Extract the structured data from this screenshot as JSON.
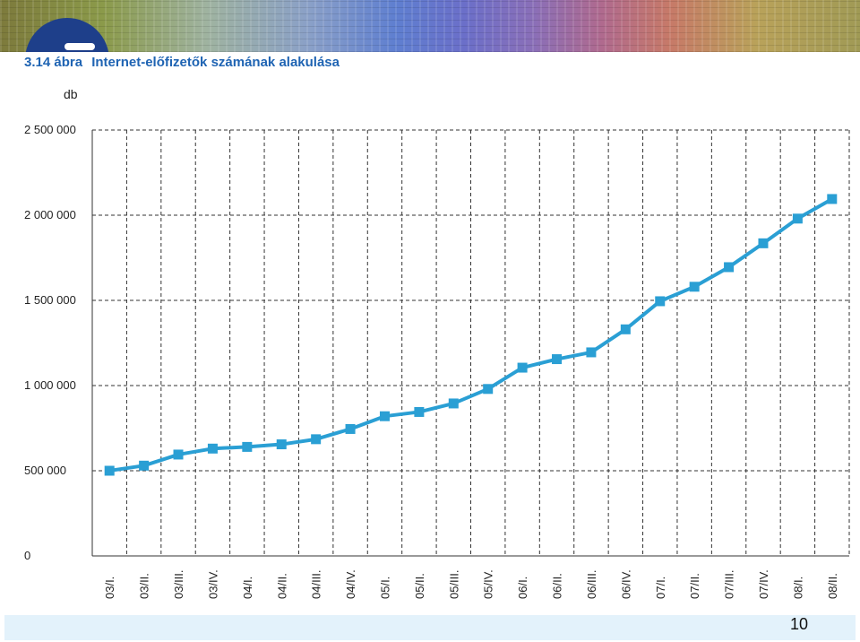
{
  "header": {
    "figure_label": "3.14 ábra",
    "title": "Internet-előfizetők számának alakulása"
  },
  "colors": {
    "series": "#2a9fd4",
    "title": "#1f64b3",
    "footer": "#e3f2fb"
  },
  "icons": {
    "banner_logo": "institution-logo"
  },
  "footer": {
    "page_number": "10"
  },
  "chart_data": {
    "type": "line",
    "title": "Internet-előfizetők számának alakulása",
    "ylabel": "db",
    "xlabel": "",
    "ylim": [
      0,
      2500000
    ],
    "yticks": [
      0,
      500000,
      1000000,
      1500000,
      2000000,
      2500000
    ],
    "ytick_labels": [
      "0",
      "500 000",
      "1 000 000",
      "1 500 000",
      "2 000 000",
      "2 500 000"
    ],
    "grid": true,
    "categories": [
      "03/I.",
      "03/II.",
      "03/III.",
      "03/IV.",
      "04/I.",
      "04/II.",
      "04/III.",
      "04/IV.",
      "05/I.",
      "05/II.",
      "05/III.",
      "05/IV.",
      "06/I.",
      "06/II.",
      "06/III.",
      "06/IV.",
      "07/I.",
      "07/II.",
      "07/III.",
      "07/IV.",
      "08/I.",
      "08/II."
    ],
    "series": [
      {
        "values": [
          500000,
          530000,
          595000,
          630000,
          640000,
          655000,
          685000,
          745000,
          820000,
          845000,
          895000,
          980000,
          1105000,
          1155000,
          1195000,
          1330000,
          1495000,
          1580000,
          1695000,
          1835000,
          1980000,
          2095000
        ]
      }
    ]
  }
}
